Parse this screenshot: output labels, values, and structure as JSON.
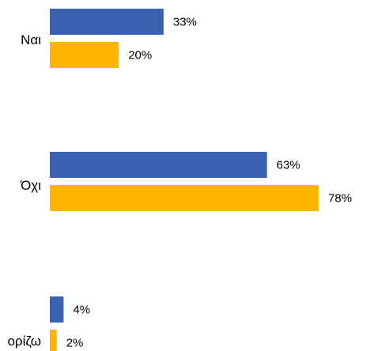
{
  "chart_data": {
    "type": "bar",
    "orientation": "horizontal",
    "categories": [
      "Ναι",
      "Όχι",
      "ορίζω"
    ],
    "series": [
      {
        "values": [
          33,
          63,
          4
        ],
        "labels": [
          "33%",
          "63%",
          "4%"
        ]
      },
      {
        "values": [
          20,
          78,
          2
        ],
        "labels": [
          "20%",
          "78%",
          "2%"
        ]
      }
    ],
    "unit": "%",
    "xlim": [
      0,
      100
    ],
    "grid": false,
    "legend": "none",
    "colors": [
      "#3a62b0",
      "#ffb400"
    ]
  }
}
